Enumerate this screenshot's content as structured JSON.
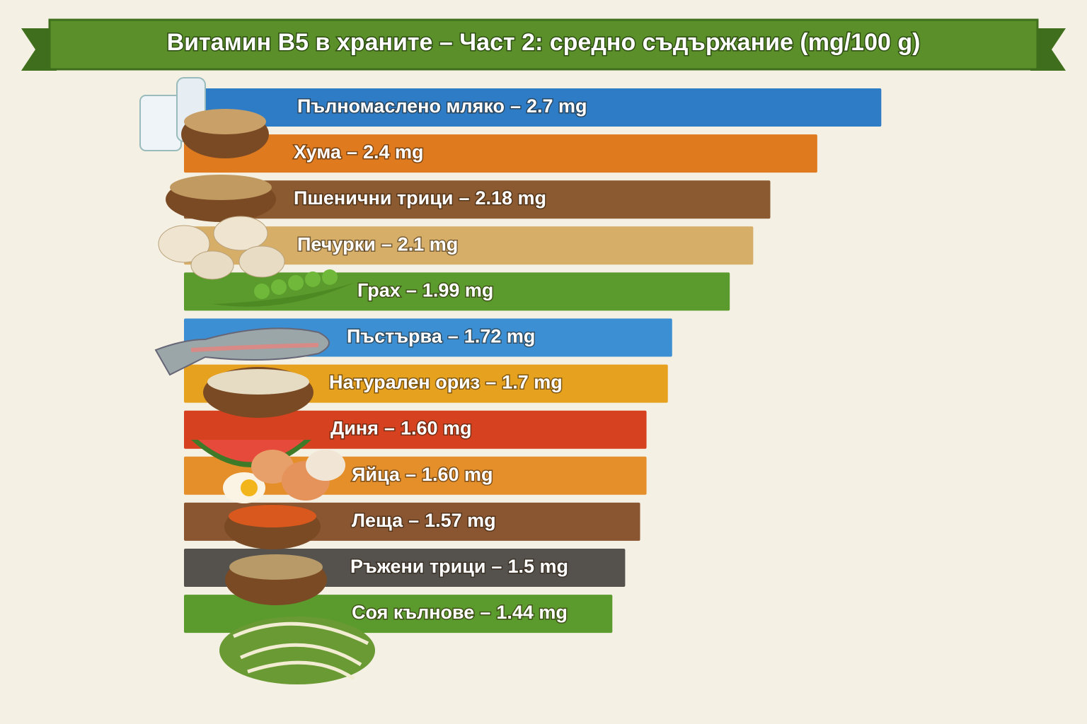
{
  "chart_data": {
    "type": "bar",
    "orientation": "horizontal",
    "title": "Витамин B5 в храните – Част 2: средно съдържание (mg/100 g)",
    "categories": [
      "Пълномаслено мляко",
      "Хума",
      "Пшенични трици",
      "Печурки",
      "Грах",
      "Пъстърва",
      "Натурален ориз",
      "Диня",
      "Яйца",
      "Леща",
      "Ръжени трици",
      "Соя кълнове"
    ],
    "values": [
      2.7,
      2.4,
      2.18,
      2.1,
      1.99,
      1.72,
      1.7,
      1.6,
      1.6,
      1.57,
      1.5,
      1.44
    ],
    "value_labels": [
      "2.7 mg",
      "2.4 mg",
      "2.18 mg",
      "2.1 mg",
      "1.99 mg",
      "1.72 mg",
      "1.7 mg",
      "1.60 mg",
      "1.60 mg",
      "1.57 mg",
      "1.5 mg",
      "1.44 mg"
    ],
    "separator": "–",
    "colors": [
      "#2e7cc6",
      "#df7a1f",
      "#8b5a30",
      "#d6ae68",
      "#5b9a2c",
      "#3b8fd2",
      "#e6a21f",
      "#d6421f",
      "#e58f2a",
      "#8a5632",
      "#55524e",
      "#5b9a2c"
    ]
  }
}
